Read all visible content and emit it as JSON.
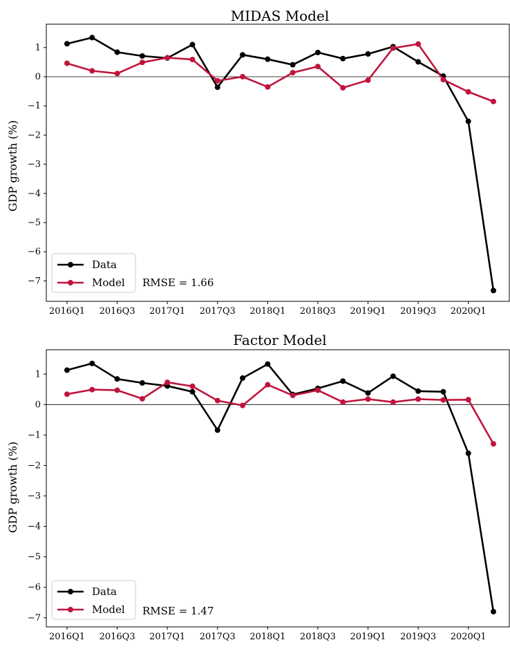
{
  "chart_data": [
    {
      "type": "line",
      "title": "MIDAS Model",
      "ylabel": "GDP growth (%)",
      "xlabel": "",
      "x": [
        "2016Q1",
        "2016Q2",
        "2016Q3",
        "2016Q4",
        "2017Q1",
        "2017Q2",
        "2017Q3",
        "2017Q4",
        "2018Q1",
        "2018Q2",
        "2018Q3",
        "2018Q4",
        "2019Q1",
        "2019Q2",
        "2019Q3",
        "2019Q4",
        "2020Q1",
        "2020Q2"
      ],
      "xticks": [
        "2016Q1",
        "2016Q3",
        "2017Q1",
        "2017Q3",
        "2018Q1",
        "2018Q3",
        "2019Q1",
        "2019Q3",
        "2020Q1"
      ],
      "yticks": [
        1,
        0,
        -1,
        -2,
        -3,
        -4,
        -5,
        -6,
        -7
      ],
      "ytick_labels": [
        "1",
        "0",
        "−1",
        "−2",
        "−3",
        "−4",
        "−5",
        "−6",
        "−7"
      ],
      "ylim": [
        -7.7,
        1.8
      ],
      "series": [
        {
          "name": "Data",
          "color": "#000000",
          "values": [
            1.13,
            1.34,
            0.84,
            0.71,
            0.64,
            1.1,
            -0.36,
            0.75,
            0.6,
            0.41,
            0.83,
            0.62,
            0.78,
            1.03,
            0.51,
            0.02,
            -1.53,
            -7.33
          ]
        },
        {
          "name": "Model",
          "color": "#c0143c",
          "values": [
            0.46,
            0.2,
            0.11,
            0.49,
            0.65,
            0.59,
            -0.14,
            0.0,
            -0.35,
            0.14,
            0.35,
            -0.38,
            -0.12,
            0.98,
            1.12,
            -0.1,
            -0.52,
            -0.85
          ]
        }
      ],
      "zero_line": true,
      "legend": {
        "position": "bottom-left",
        "entries": [
          "Data",
          "Model"
        ]
      },
      "annotation": "RMSE = 1.66",
      "grid": false
    },
    {
      "type": "line",
      "title": "Factor Model",
      "ylabel": "GDP growth (%)",
      "xlabel": "",
      "x": [
        "2016Q1",
        "2016Q2",
        "2016Q3",
        "2016Q4",
        "2017Q1",
        "2017Q2",
        "2017Q3",
        "2017Q4",
        "2018Q1",
        "2018Q2",
        "2018Q3",
        "2018Q4",
        "2019Q1",
        "2019Q2",
        "2019Q3",
        "2019Q4",
        "2020Q1",
        "2020Q2"
      ],
      "xticks": [
        "2016Q1",
        "2016Q3",
        "2017Q1",
        "2017Q3",
        "2018Q1",
        "2018Q3",
        "2019Q1",
        "2019Q3",
        "2020Q1"
      ],
      "yticks": [
        1,
        0,
        -1,
        -2,
        -3,
        -4,
        -5,
        -6,
        -7
      ],
      "ytick_labels": [
        "1",
        "0",
        "−1",
        "−2",
        "−3",
        "−4",
        "−5",
        "−6",
        "−7"
      ],
      "ylim": [
        -7.3,
        1.8
      ],
      "series": [
        {
          "name": "Data",
          "color": "#000000",
          "values": [
            1.13,
            1.35,
            0.84,
            0.71,
            0.61,
            0.42,
            -0.84,
            0.87,
            1.33,
            0.33,
            0.53,
            0.77,
            0.38,
            0.93,
            0.44,
            0.42,
            -1.6,
            -6.8
          ]
        },
        {
          "name": "Model",
          "color": "#c0143c",
          "values": [
            0.34,
            0.49,
            0.47,
            0.19,
            0.73,
            0.6,
            0.13,
            -0.03,
            0.65,
            0.3,
            0.47,
            0.08,
            0.18,
            0.08,
            0.18,
            0.15,
            0.16,
            -1.29
          ]
        }
      ],
      "zero_line": true,
      "legend": {
        "position": "bottom-left",
        "entries": [
          "Data",
          "Model"
        ]
      },
      "annotation": "RMSE = 1.47",
      "grid": false
    }
  ]
}
